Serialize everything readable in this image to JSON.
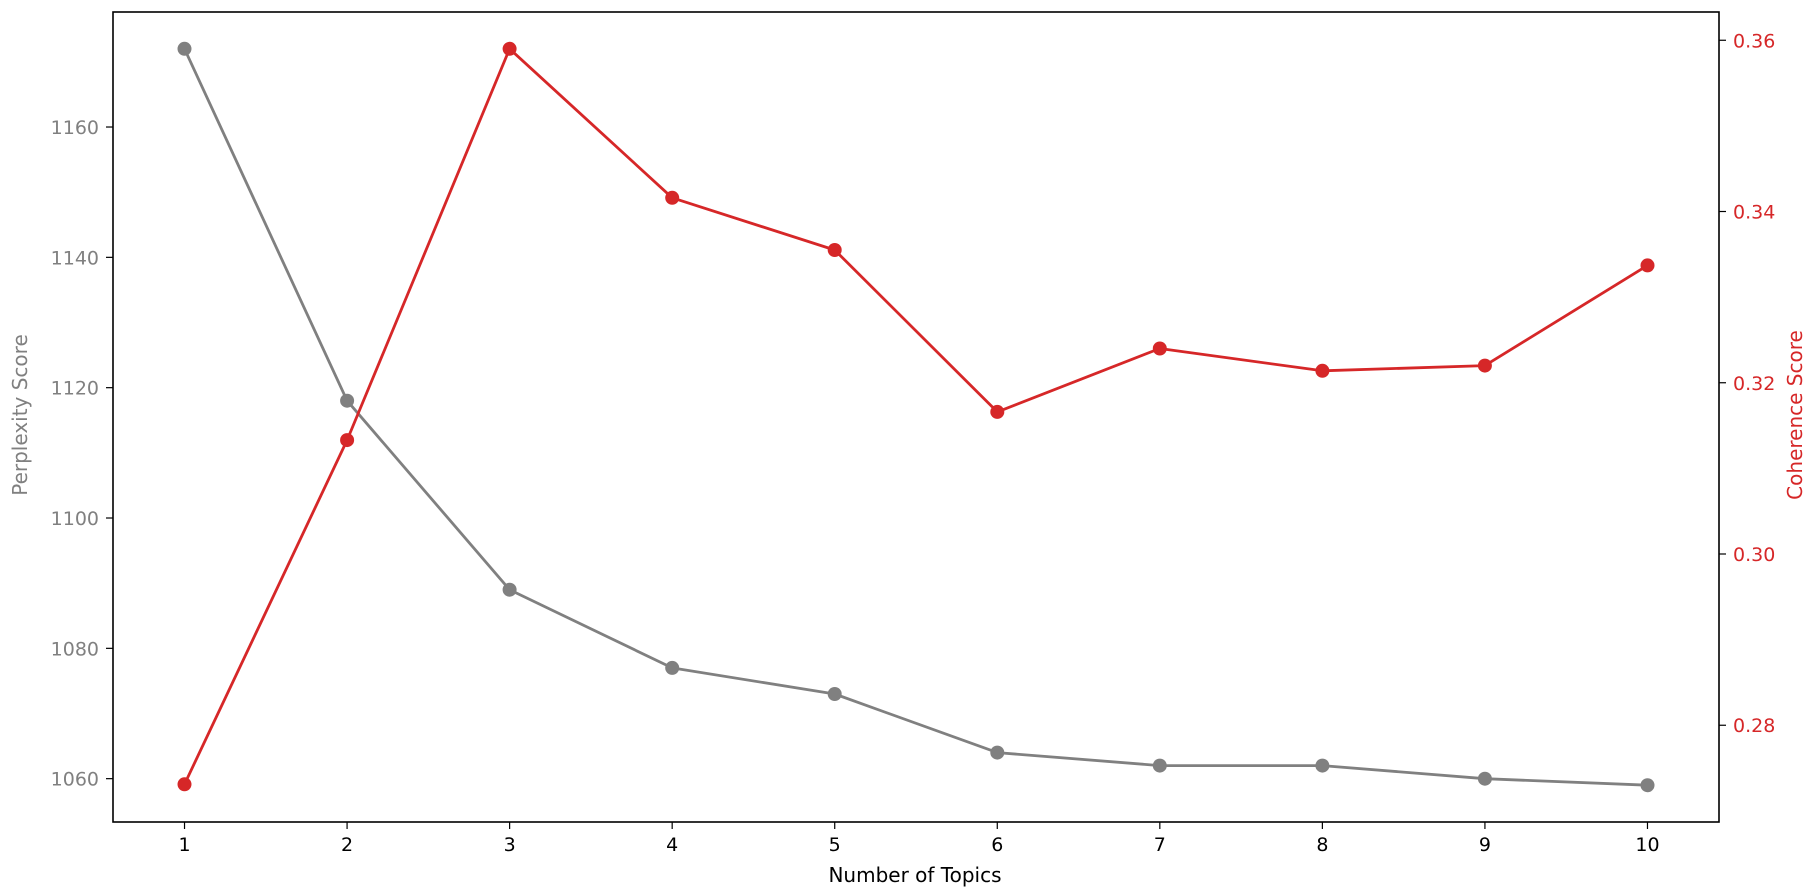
{
  "chart_data": {
    "type": "line",
    "xlabel": "Number of Topics",
    "ylabel_left": "Perplexity Score",
    "ylabel_right": "Coherence Score",
    "x": [
      1,
      2,
      3,
      4,
      5,
      6,
      7,
      8,
      9,
      10
    ],
    "x_ticks": [
      "1",
      "2",
      "3",
      "4",
      "5",
      "6",
      "7",
      "8",
      "9",
      "10"
    ],
    "xlim": [
      0.56,
      10.44
    ],
    "series": [
      {
        "axis": "left",
        "color": "#808080",
        "values": [
          1172,
          1118,
          1089,
          1077,
          1073,
          1064,
          1062,
          1062,
          1060,
          1059
        ]
      },
      {
        "axis": "right",
        "color": "#d62728",
        "values": [
          0.2731,
          0.3133,
          0.359,
          0.3416,
          0.3355,
          0.3166,
          0.324,
          0.3214,
          0.322,
          0.3337
        ]
      }
    ],
    "ylim_left": [
      1053.35,
      1177.65
    ],
    "yticks_left": [
      "1060",
      "1080",
      "1100",
      "1120",
      "1140",
      "1160"
    ],
    "ylim_right": [
      0.2687,
      0.3633
    ],
    "yticks_right": [
      "0.28",
      "0.30",
      "0.32",
      "0.34",
      "0.36"
    ],
    "left_axis_color": "#808080",
    "right_axis_color": "#d62728",
    "grid": false,
    "legend": "none"
  }
}
